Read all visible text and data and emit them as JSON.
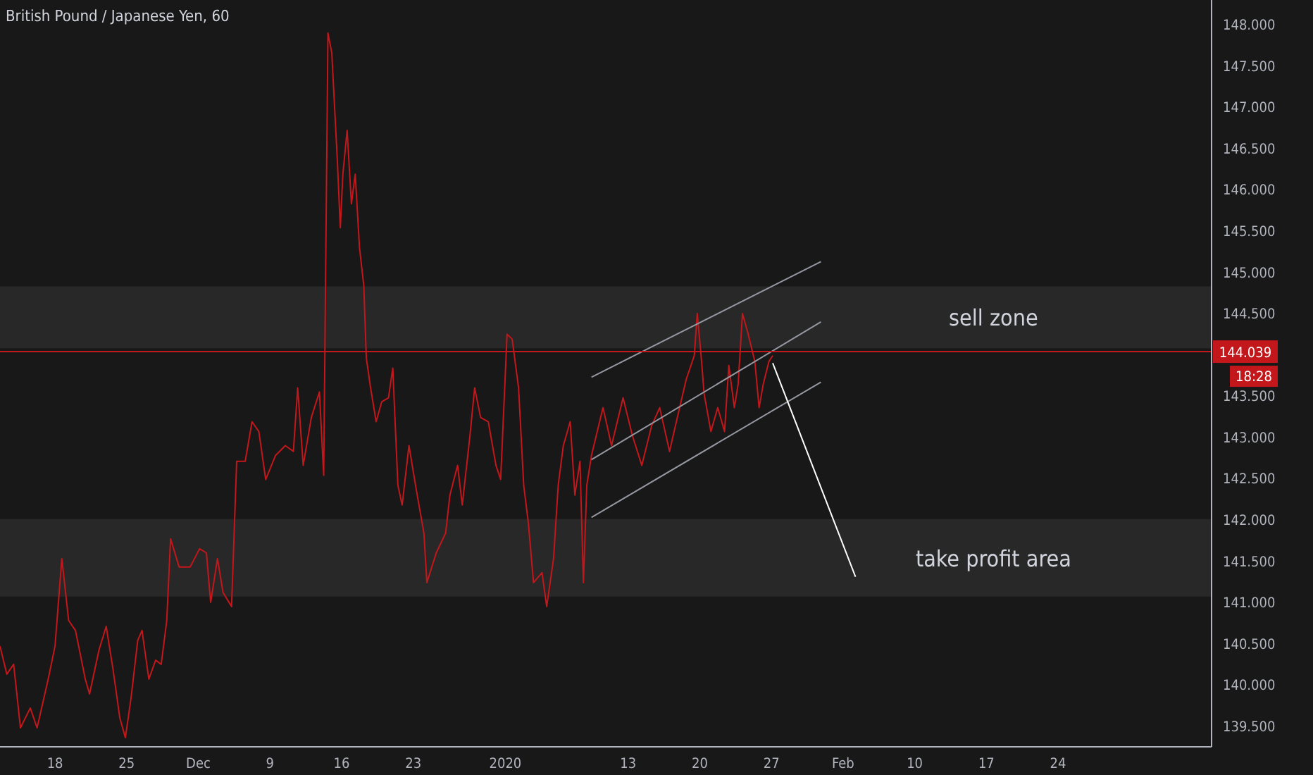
{
  "chart_data": {
    "type": "line",
    "title": "British Pound / Japanese Yen, 60",
    "xlim": [
      "2019-11-12T15:00",
      "2020-03-10"
    ],
    "xticks": [
      {
        "value": "2019-11-18",
        "label": "18"
      },
      {
        "value": "2019-11-25",
        "label": "25"
      },
      {
        "value": "2019-12-02",
        "label": "Dec"
      },
      {
        "value": "2019-12-09",
        "label": "9"
      },
      {
        "value": "2019-12-16",
        "label": "16"
      },
      {
        "value": "2019-12-23",
        "label": "23"
      },
      {
        "value": "2020-01-01",
        "label": "2020"
      },
      {
        "value": "2020-01-13",
        "label": "13"
      },
      {
        "value": "2020-01-20",
        "label": "20"
      },
      {
        "value": "2020-01-27",
        "label": "27"
      },
      {
        "value": "2020-02-03",
        "label": "Feb"
      },
      {
        "value": "2020-02-10",
        "label": "10"
      },
      {
        "value": "2020-02-17",
        "label": "17"
      },
      {
        "value": "2020-02-24",
        "label": "24"
      }
    ],
    "ylim": [
      139.25,
      148.3
    ],
    "yticks": [
      {
        "value": 139.5,
        "label": "139.500"
      },
      {
        "value": 140,
        "label": "140.000"
      },
      {
        "value": 140.5,
        "label": "140.500"
      },
      {
        "value": 141,
        "label": "141.000"
      },
      {
        "value": 141.5,
        "label": "141.500"
      },
      {
        "value": 142,
        "label": "142.000"
      },
      {
        "value": 142.5,
        "label": "142.500"
      },
      {
        "value": 143,
        "label": "143.000"
      },
      {
        "value": 143.5,
        "label": "143.500"
      },
      {
        "value": 144.5,
        "label": "144.500"
      },
      {
        "value": 145,
        "label": "145.000"
      },
      {
        "value": 145.5,
        "label": "145.500"
      },
      {
        "value": 146,
        "label": "146.000"
      },
      {
        "value": 146.5,
        "label": "146.500"
      },
      {
        "value": 147,
        "label": "147.000"
      },
      {
        "value": 147.5,
        "label": "147.500"
      },
      {
        "value": 148,
        "label": "148.000"
      }
    ],
    "grid": false,
    "legend": false,
    "marker": "none",
    "line_style": "solid",
    "bands": [
      {
        "axis": "y",
        "from": 144.08,
        "to": 144.83,
        "label": "sell zone",
        "color": "#282828"
      },
      {
        "axis": "y",
        "from": 141.07,
        "to": 142.01,
        "label": "take profit area",
        "color": "#282828"
      }
    ],
    "ref_lines": [
      {
        "axis": "y",
        "value": 144.039,
        "label": "144.039",
        "color": "#c3171b"
      }
    ],
    "annotations": [
      "18:28"
    ],
    "series": [
      {
        "color": "#c3171b",
        "x": [
          "2019-11-12T15:00",
          "2019-11-13T07:00",
          "2019-11-13T23:00",
          "2019-11-14T15:00",
          "2019-11-15T14:00",
          "2019-11-16T06:00",
          "2019-11-17T08:00",
          "2019-11-18T00:00",
          "2019-11-18T16:00",
          "2019-11-19T08:00",
          "2019-11-20T00:00",
          "2019-11-20T23:00",
          "2019-11-21T09:00",
          "2019-11-22T07:00",
          "2019-11-23T00:00",
          "2019-11-23T16:00",
          "2019-11-24T08:00",
          "2019-11-24T21:00",
          "2019-11-25T10:00",
          "2019-11-26T02:00",
          "2019-11-26T12:00",
          "2019-11-27T04:00",
          "2019-11-27T20:00",
          "2019-11-28T09:00",
          "2019-11-28T22:00",
          "2019-11-29T07:00",
          "2019-11-30T03:00",
          "2019-12-01T05:00",
          "2019-12-02T03:00",
          "2019-12-02T19:00",
          "2019-12-03T05:00",
          "2019-12-03T21:00",
          "2019-12-04T10:00",
          "2019-12-05T06:00",
          "2019-12-05T18:00",
          "2019-12-06T14:00",
          "2019-12-07T06:00",
          "2019-12-07T22:00",
          "2019-12-08T14:00",
          "2019-12-09T13:00",
          "2019-12-10T12:00",
          "2019-12-11T07:00",
          "2019-12-11T17:00",
          "2019-12-12T06:00",
          "2019-12-13T01:00",
          "2019-12-13T20:00",
          "2019-12-14T06:00",
          "2019-12-14T16:00",
          "2019-12-15T01:00",
          "2019-12-15T14:00",
          "2019-12-15T21:00",
          "2019-12-16T03:00",
          "2019-12-16T13:00",
          "2019-12-16T23:00",
          "2019-12-17T08:00",
          "2019-12-17T18:00",
          "2019-12-18T04:00",
          "2019-12-18T10:00",
          "2019-12-18T20:00",
          "2019-12-19T09:00",
          "2019-12-19T22:00",
          "2019-12-20T14:00",
          "2019-12-21T00:00",
          "2019-12-21T12:00",
          "2019-12-21T22:00",
          "2019-12-22T14:00",
          "2019-12-23T07:00",
          "2019-12-24T01:00",
          "2019-12-24T08:00",
          "2019-12-25T06:00",
          "2019-12-26T04:00",
          "2019-12-26T14:00",
          "2019-12-27T08:00",
          "2019-12-27T19:00",
          "2019-12-28T13:00",
          "2019-12-29T00:00",
          "2019-12-29T14:00",
          "2019-12-30T08:00",
          "2019-12-31T02:00",
          "2019-12-31T13:00",
          "2020-01-01T04:00",
          "2020-01-01T16:00",
          "2020-01-02T07:00",
          "2020-01-02T19:00",
          "2020-01-03T06:00",
          "2020-01-03T18:00",
          "2020-01-04T14:00",
          "2020-01-05T01:00",
          "2020-01-05T17:00",
          "2020-01-06T04:00",
          "2020-01-06T16:00",
          "2020-01-07T08:00",
          "2020-01-07T19:00",
          "2020-01-08T07:00",
          "2020-01-08T15:00",
          "2020-01-08T23:00",
          "2020-01-09T10:00",
          "2020-01-10T13:00",
          "2020-01-11T09:00",
          "2020-01-12T12:00",
          "2020-01-13T10:00",
          "2020-01-14T08:00",
          "2020-01-15T07:00",
          "2020-01-16T02:00",
          "2020-01-17T01:00",
          "2020-01-17T17:00",
          "2020-01-18T16:00",
          "2020-01-19T11:00",
          "2020-01-19T18:00",
          "2020-01-20T03:00",
          "2020-01-20T10:00",
          "2020-01-21T02:00",
          "2020-01-21T18:00",
          "2020-01-22T10:00",
          "2020-01-22T20:00",
          "2020-01-23T09:00",
          "2020-01-23T18:00",
          "2020-01-24T04:00",
          "2020-01-24T17:00",
          "2020-01-25T09:00",
          "2020-01-25T19:00",
          "2020-01-26T05:00",
          "2020-01-26T18:00",
          "2020-01-27T03:00"
        ],
        "values": [
          140.47,
          140.13,
          140.25,
          139.48,
          139.72,
          139.48,
          140.07,
          140.47,
          141.53,
          140.78,
          140.66,
          140.07,
          139.89,
          140.42,
          140.71,
          140.19,
          139.6,
          139.36,
          139.83,
          140.54,
          140.66,
          140.07,
          140.3,
          140.25,
          140.78,
          141.77,
          141.43,
          141.43,
          141.65,
          141.6,
          141.0,
          141.53,
          141.12,
          140.95,
          142.71,
          142.71,
          143.19,
          143.07,
          142.49,
          142.78,
          142.9,
          142.83,
          143.6,
          142.66,
          143.24,
          143.55,
          142.54,
          147.9,
          147.66,
          146.36,
          145.54,
          146.19,
          146.72,
          145.83,
          146.19,
          145.3,
          144.84,
          143.96,
          143.6,
          143.19,
          143.43,
          143.48,
          143.84,
          142.42,
          142.18,
          142.9,
          142.37,
          141.84,
          141.24,
          141.6,
          141.84,
          142.3,
          142.66,
          142.18,
          143.02,
          143.6,
          143.24,
          143.19,
          142.66,
          142.49,
          144.25,
          144.19,
          143.6,
          142.42,
          141.96,
          141.24,
          141.36,
          140.95,
          141.53,
          142.42,
          142.9,
          143.19,
          142.3,
          142.71,
          141.24,
          142.42,
          142.78,
          143.36,
          142.9,
          143.48,
          143.02,
          142.66,
          143.14,
          143.36,
          142.83,
          143.19,
          143.7,
          143.99,
          144.5,
          143.99,
          143.53,
          143.07,
          143.36,
          143.07,
          143.87,
          143.36,
          143.65,
          144.5,
          144.26,
          143.92,
          143.36,
          143.65,
          143.92,
          143.99
        ]
      },
      {
        "color": "#9598a1",
        "x": [
          "2020-01-09T10:00",
          "2020-01-31T20:00"
        ],
        "values": [
          143.73,
          145.13
        ]
      },
      {
        "color": "#9598a1",
        "x": [
          "2020-01-09T10:00",
          "2020-01-31T20:00"
        ],
        "values": [
          142.73,
          144.4
        ]
      },
      {
        "color": "#9598a1",
        "x": [
          "2020-01-09T10:00",
          "2020-01-31T20:00"
        ],
        "values": [
          142.03,
          143.67
        ]
      },
      {
        "color": "#ffffff",
        "x": [
          "2020-01-27T03:00",
          "2020-02-04T05:00"
        ],
        "values": [
          143.9,
          141.31
        ]
      }
    ]
  }
}
